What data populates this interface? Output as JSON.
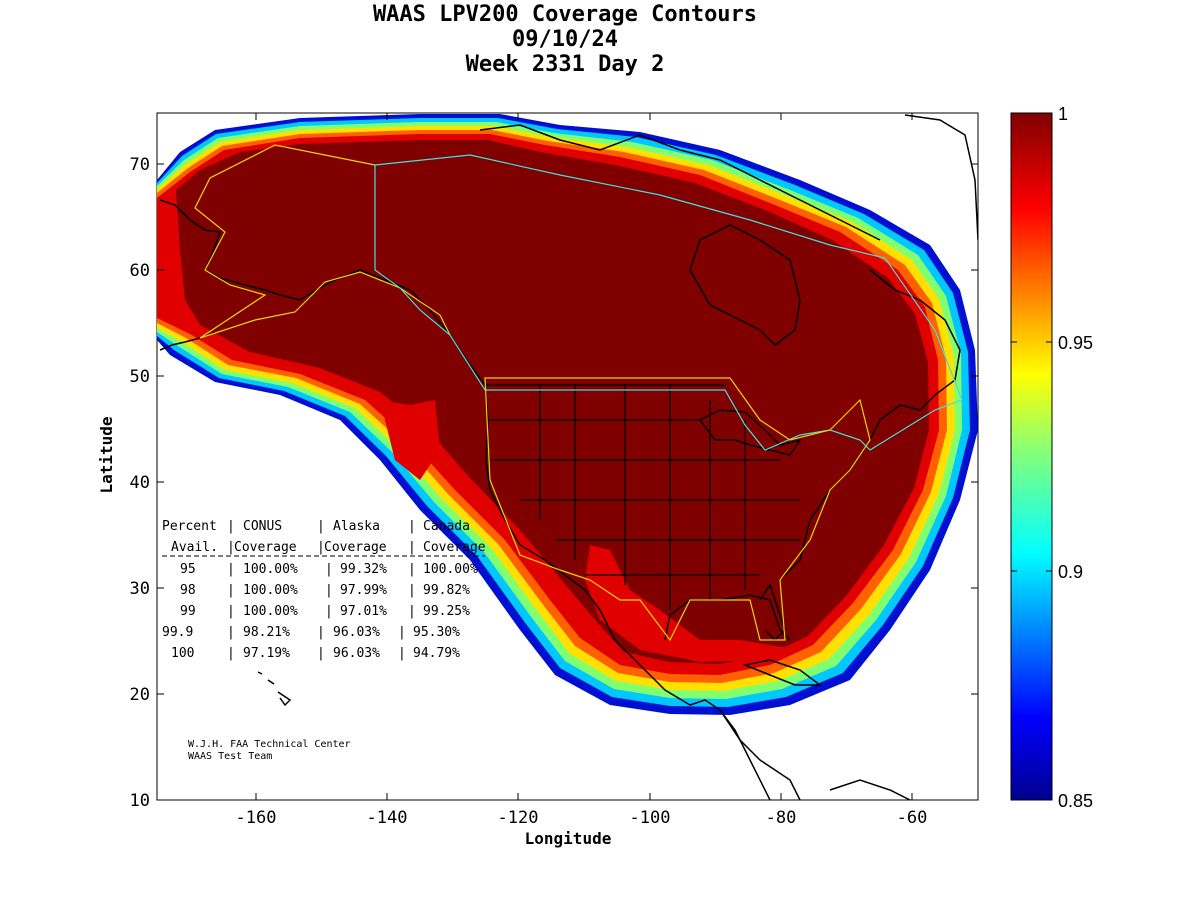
{
  "title": {
    "line1": "WAAS LPV200 Coverage Contours",
    "line2": "09/10/24",
    "line3": "Week 2331 Day 2"
  },
  "axes": {
    "xlabel": "Longitude",
    "ylabel": "Latitude",
    "xticks": [
      "-160",
      "-140",
      "-120",
      "-100",
      "-80",
      "-60"
    ],
    "yticks": [
      "70",
      "60",
      "50",
      "40",
      "30",
      "20",
      "10"
    ]
  },
  "colorbar": {
    "ticks": [
      "1",
      "0.95",
      "0.9",
      "0.85"
    ]
  },
  "table": {
    "header1": [
      "Percent",
      "CONUS",
      "Alaska",
      "Canada"
    ],
    "header2": [
      "Avail.",
      "Coverage",
      "Coverage",
      "Coverage"
    ],
    "rows": [
      [
        "95",
        "100.00%",
        "99.32%",
        "100.00%"
      ],
      [
        "98",
        "100.00%",
        "97.99%",
        "99.82%"
      ],
      [
        "99",
        "100.00%",
        "97.01%",
        "99.25%"
      ],
      [
        "99.9",
        "98.21%",
        "96.03%",
        "95.30%"
      ],
      [
        "100",
        "97.19%",
        "96.03%",
        "94.79%"
      ]
    ]
  },
  "credit": {
    "line1": "W.J.H. FAA Technical Center",
    "line2": "WAAS Test Team"
  },
  "chart_data": {
    "type": "heatmap",
    "xlim": [
      -175,
      -50
    ],
    "ylim": [
      10,
      75
    ],
    "color_range": [
      0.85,
      1.0
    ],
    "colormap": "jet"
  }
}
